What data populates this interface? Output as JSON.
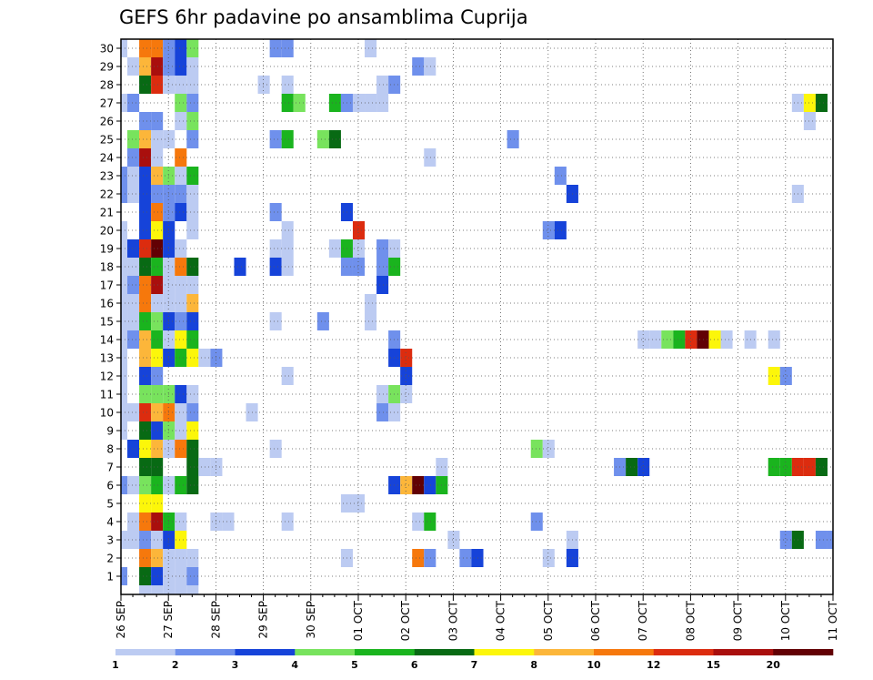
{
  "chart_data": {
    "type": "heatmap",
    "title": "GEFS 6hr padavine po ansamblima Cuprija",
    "xlabel": "",
    "ylabel": "",
    "x_tick_labels": [
      "26 SEP",
      "27 SEP",
      "28 SEP",
      "29 SEP",
      "30 SEP",
      "01 OCT",
      "02 OCT",
      "03 OCT",
      "04 OCT",
      "05 OCT",
      "06 OCT",
      "07 OCT",
      "08 OCT",
      "09 OCT",
      "10 OCT",
      "11 OCT"
    ],
    "x_start": "2021-09-26 00Z",
    "x_step_hours": 6,
    "x_steps": 61,
    "y_tick_labels": [
      1,
      2,
      3,
      4,
      5,
      6,
      7,
      8,
      9,
      10,
      11,
      12,
      13,
      14,
      15,
      16,
      17,
      18,
      19,
      20,
      21,
      22,
      23,
      24,
      25,
      26,
      27,
      28,
      29,
      30
    ],
    "grid": true,
    "legend_position": "bottom",
    "legend_thresholds": [
      1,
      2,
      3,
      4,
      5,
      6,
      7,
      8,
      10,
      12,
      15,
      20
    ],
    "legend_colors": [
      "#bccbf2",
      "#6f90ec",
      "#1643d9",
      "#78e35d",
      "#1ab41e",
      "#086a14",
      "#fcf60a",
      "#fcb63a",
      "#f6780c",
      "#dc2c0f",
      "#a90f0d",
      "#620004"
    ],
    "category_precip_mm": [
      "1-2 mm",
      "2-3 mm",
      "3-4 mm",
      "4-5 mm",
      "5-6 mm",
      "6-7 mm",
      "7-8 mm",
      "8-10 mm",
      "10-12 mm",
      "12-15 mm",
      "15-20 mm",
      ">20 mm"
    ],
    "cells_format": "[member, step_index, category_index]",
    "cells": [
      [
        30,
        0,
        0
      ],
      [
        30,
        2,
        8
      ],
      [
        30,
        3,
        8
      ],
      [
        30,
        4,
        1
      ],
      [
        30,
        5,
        2
      ],
      [
        30,
        6,
        3
      ],
      [
        30,
        13,
        1
      ],
      [
        30,
        14,
        1
      ],
      [
        30,
        21,
        0
      ],
      [
        29,
        1,
        0
      ],
      [
        29,
        2,
        7
      ],
      [
        29,
        3,
        10
      ],
      [
        29,
        4,
        1
      ],
      [
        29,
        5,
        2
      ],
      [
        29,
        6,
        0
      ],
      [
        29,
        25,
        1
      ],
      [
        29,
        26,
        0
      ],
      [
        28,
        2,
        5
      ],
      [
        28,
        3,
        9
      ],
      [
        28,
        4,
        0
      ],
      [
        28,
        5,
        0
      ],
      [
        28,
        6,
        0
      ],
      [
        28,
        12,
        0
      ],
      [
        28,
        14,
        0
      ],
      [
        28,
        22,
        0
      ],
      [
        28,
        23,
        1
      ],
      [
        27,
        0,
        0
      ],
      [
        27,
        1,
        1
      ],
      [
        27,
        5,
        3
      ],
      [
        27,
        6,
        1
      ],
      [
        27,
        14,
        4
      ],
      [
        27,
        15,
        3
      ],
      [
        27,
        18,
        4
      ],
      [
        27,
        19,
        1
      ],
      [
        27,
        20,
        0
      ],
      [
        27,
        21,
        0
      ],
      [
        27,
        22,
        0
      ],
      [
        27,
        57,
        0
      ],
      [
        27,
        58,
        6
      ],
      [
        27,
        59,
        5
      ],
      [
        26,
        2,
        1
      ],
      [
        26,
        3,
        1
      ],
      [
        26,
        5,
        0
      ],
      [
        26,
        6,
        3
      ],
      [
        26,
        58,
        0
      ],
      [
        25,
        1,
        3
      ],
      [
        25,
        2,
        7
      ],
      [
        25,
        3,
        0
      ],
      [
        25,
        4,
        0
      ],
      [
        25,
        6,
        1
      ],
      [
        25,
        13,
        1
      ],
      [
        25,
        14,
        4
      ],
      [
        25,
        17,
        3
      ],
      [
        25,
        18,
        5
      ],
      [
        25,
        33,
        1
      ],
      [
        24,
        1,
        1
      ],
      [
        24,
        2,
        10
      ],
      [
        24,
        3,
        0
      ],
      [
        24,
        5,
        8
      ],
      [
        24,
        26,
        0
      ],
      [
        23,
        0,
        1
      ],
      [
        23,
        1,
        0
      ],
      [
        23,
        2,
        2
      ],
      [
        23,
        3,
        7
      ],
      [
        23,
        4,
        3
      ],
      [
        23,
        5,
        0
      ],
      [
        23,
        6,
        4
      ],
      [
        23,
        37,
        1
      ],
      [
        22,
        0,
        1
      ],
      [
        22,
        1,
        0
      ],
      [
        22,
        2,
        2
      ],
      [
        22,
        3,
        1
      ],
      [
        22,
        4,
        1
      ],
      [
        22,
        5,
        1
      ],
      [
        22,
        6,
        0
      ],
      [
        22,
        38,
        2
      ],
      [
        22,
        57,
        0
      ],
      [
        21,
        2,
        2
      ],
      [
        21,
        3,
        8
      ],
      [
        21,
        4,
        1
      ],
      [
        21,
        5,
        2
      ],
      [
        21,
        6,
        0
      ],
      [
        21,
        13,
        1
      ],
      [
        21,
        19,
        2
      ],
      [
        20,
        0,
        0
      ],
      [
        20,
        2,
        2
      ],
      [
        20,
        3,
        6
      ],
      [
        20,
        4,
        2
      ],
      [
        20,
        6,
        0
      ],
      [
        20,
        14,
        0
      ],
      [
        20,
        20,
        9
      ],
      [
        20,
        36,
        1
      ],
      [
        20,
        37,
        2
      ],
      [
        19,
        0,
        0
      ],
      [
        19,
        1,
        2
      ],
      [
        19,
        2,
        9
      ],
      [
        19,
        3,
        11
      ],
      [
        19,
        4,
        2
      ],
      [
        19,
        5,
        0
      ],
      [
        19,
        13,
        0
      ],
      [
        19,
        14,
        0
      ],
      [
        19,
        18,
        0
      ],
      [
        19,
        19,
        4
      ],
      [
        19,
        20,
        0
      ],
      [
        19,
        22,
        1
      ],
      [
        19,
        23,
        0
      ],
      [
        18,
        0,
        0
      ],
      [
        18,
        1,
        0
      ],
      [
        18,
        2,
        5
      ],
      [
        18,
        3,
        4
      ],
      [
        18,
        4,
        0
      ],
      [
        18,
        5,
        8
      ],
      [
        18,
        6,
        5
      ],
      [
        18,
        10,
        2
      ],
      [
        18,
        13,
        2
      ],
      [
        18,
        14,
        0
      ],
      [
        18,
        19,
        1
      ],
      [
        18,
        20,
        1
      ],
      [
        18,
        22,
        1
      ],
      [
        18,
        23,
        4
      ],
      [
        17,
        0,
        0
      ],
      [
        17,
        1,
        1
      ],
      [
        17,
        2,
        8
      ],
      [
        17,
        3,
        10
      ],
      [
        17,
        4,
        0
      ],
      [
        17,
        5,
        0
      ],
      [
        17,
        6,
        0
      ],
      [
        17,
        22,
        2
      ],
      [
        16,
        0,
        0
      ],
      [
        16,
        1,
        0
      ],
      [
        16,
        2,
        8
      ],
      [
        16,
        3,
        0
      ],
      [
        16,
        4,
        0
      ],
      [
        16,
        5,
        0
      ],
      [
        16,
        6,
        7
      ],
      [
        16,
        21,
        0
      ],
      [
        15,
        0,
        0
      ],
      [
        15,
        1,
        0
      ],
      [
        15,
        2,
        4
      ],
      [
        15,
        3,
        3
      ],
      [
        15,
        4,
        2
      ],
      [
        15,
        5,
        1
      ],
      [
        15,
        6,
        2
      ],
      [
        15,
        13,
        0
      ],
      [
        15,
        17,
        1
      ],
      [
        15,
        21,
        0
      ],
      [
        14,
        0,
        0
      ],
      [
        14,
        1,
        1
      ],
      [
        14,
        2,
        7
      ],
      [
        14,
        3,
        4
      ],
      [
        14,
        4,
        0
      ],
      [
        14,
        5,
        6
      ],
      [
        14,
        6,
        4
      ],
      [
        14,
        23,
        1
      ],
      [
        14,
        44,
        0
      ],
      [
        14,
        45,
        0
      ],
      [
        14,
        46,
        3
      ],
      [
        14,
        47,
        4
      ],
      [
        14,
        48,
        9
      ],
      [
        14,
        49,
        11
      ],
      [
        14,
        50,
        6
      ],
      [
        14,
        51,
        0
      ],
      [
        14,
        53,
        0
      ],
      [
        14,
        55,
        0
      ],
      [
        13,
        0,
        0
      ],
      [
        13,
        2,
        7
      ],
      [
        13,
        3,
        6
      ],
      [
        13,
        4,
        2
      ],
      [
        13,
        5,
        4
      ],
      [
        13,
        6,
        6
      ],
      [
        13,
        7,
        0
      ],
      [
        13,
        8,
        1
      ],
      [
        13,
        23,
        2
      ],
      [
        13,
        24,
        9
      ],
      [
        12,
        0,
        0
      ],
      [
        12,
        2,
        2
      ],
      [
        12,
        3,
        1
      ],
      [
        12,
        14,
        0
      ],
      [
        12,
        24,
        2
      ],
      [
        12,
        55,
        6
      ],
      [
        12,
        56,
        1
      ],
      [
        11,
        0,
        0
      ],
      [
        11,
        2,
        3
      ],
      [
        11,
        3,
        3
      ],
      [
        11,
        4,
        3
      ],
      [
        11,
        5,
        2
      ],
      [
        11,
        6,
        0
      ],
      [
        11,
        22,
        0
      ],
      [
        11,
        23,
        3
      ],
      [
        11,
        24,
        0
      ],
      [
        10,
        0,
        0
      ],
      [
        10,
        1,
        0
      ],
      [
        10,
        2,
        9
      ],
      [
        10,
        3,
        7
      ],
      [
        10,
        4,
        8
      ],
      [
        10,
        5,
        0
      ],
      [
        10,
        6,
        1
      ],
      [
        10,
        11,
        0
      ],
      [
        10,
        22,
        1
      ],
      [
        10,
        23,
        0
      ],
      [
        9,
        0,
        0
      ],
      [
        9,
        2,
        5
      ],
      [
        9,
        3,
        2
      ],
      [
        9,
        4,
        3
      ],
      [
        9,
        5,
        0
      ],
      [
        9,
        6,
        6
      ],
      [
        8,
        1,
        2
      ],
      [
        8,
        2,
        6
      ],
      [
        8,
        3,
        7
      ],
      [
        8,
        4,
        0
      ],
      [
        8,
        5,
        8
      ],
      [
        8,
        6,
        5
      ],
      [
        8,
        13,
        0
      ],
      [
        8,
        35,
        3
      ],
      [
        8,
        36,
        0
      ],
      [
        7,
        2,
        5
      ],
      [
        7,
        3,
        5
      ],
      [
        7,
        6,
        5
      ],
      [
        7,
        7,
        0
      ],
      [
        7,
        8,
        0
      ],
      [
        7,
        27,
        0
      ],
      [
        7,
        42,
        1
      ],
      [
        7,
        43,
        5
      ],
      [
        7,
        44,
        2
      ],
      [
        7,
        55,
        4
      ],
      [
        7,
        56,
        4
      ],
      [
        7,
        57,
        9
      ],
      [
        7,
        58,
        9
      ],
      [
        7,
        59,
        5
      ],
      [
        6,
        0,
        1
      ],
      [
        6,
        1,
        0
      ],
      [
        6,
        2,
        3
      ],
      [
        6,
        3,
        4
      ],
      [
        6,
        4,
        0
      ],
      [
        6,
        5,
        4
      ],
      [
        6,
        6,
        5
      ],
      [
        6,
        23,
        2
      ],
      [
        6,
        24,
        7
      ],
      [
        6,
        25,
        11
      ],
      [
        6,
        26,
        2
      ],
      [
        6,
        27,
        4
      ],
      [
        5,
        2,
        6
      ],
      [
        5,
        3,
        6
      ],
      [
        5,
        19,
        0
      ],
      [
        5,
        20,
        0
      ],
      [
        4,
        1,
        0
      ],
      [
        4,
        2,
        8
      ],
      [
        4,
        3,
        10
      ],
      [
        4,
        4,
        4
      ],
      [
        4,
        5,
        0
      ],
      [
        4,
        8,
        0
      ],
      [
        4,
        9,
        0
      ],
      [
        4,
        14,
        0
      ],
      [
        4,
        25,
        0
      ],
      [
        4,
        26,
        4
      ],
      [
        4,
        35,
        1
      ],
      [
        3,
        0,
        0
      ],
      [
        3,
        1,
        0
      ],
      [
        3,
        2,
        1
      ],
      [
        3,
        3,
        0
      ],
      [
        3,
        4,
        2
      ],
      [
        3,
        5,
        6
      ],
      [
        3,
        28,
        0
      ],
      [
        3,
        38,
        0
      ],
      [
        3,
        56,
        1
      ],
      [
        3,
        57,
        5
      ],
      [
        3,
        59,
        1
      ],
      [
        3,
        60,
        1
      ],
      [
        2,
        2,
        8
      ],
      [
        2,
        3,
        7
      ],
      [
        2,
        4,
        0
      ],
      [
        2,
        5,
        0
      ],
      [
        2,
        6,
        0
      ],
      [
        2,
        19,
        0
      ],
      [
        2,
        25,
        8
      ],
      [
        2,
        26,
        1
      ],
      [
        2,
        29,
        1
      ],
      [
        2,
        30,
        2
      ],
      [
        2,
        36,
        0
      ],
      [
        2,
        38,
        2
      ],
      [
        1,
        0,
        1
      ],
      [
        1,
        2,
        5
      ],
      [
        1,
        3,
        2
      ],
      [
        1,
        4,
        0
      ],
      [
        1,
        5,
        0
      ],
      [
        1,
        6,
        1
      ],
      [
        0,
        2,
        0
      ],
      [
        0,
        3,
        0
      ],
      [
        0,
        4,
        0
      ],
      [
        0,
        5,
        0
      ],
      [
        0,
        6,
        0
      ]
    ]
  }
}
